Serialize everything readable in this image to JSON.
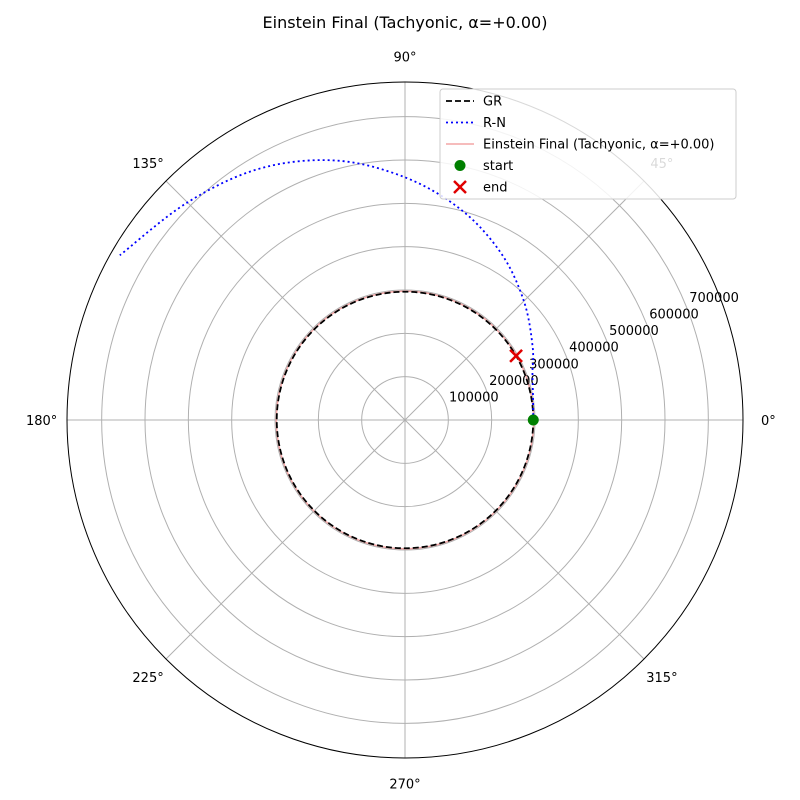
{
  "chart_data": {
    "type": "polar-line",
    "title": "Einstein Final (Tachyonic, α=+0.00)",
    "angle_ticks": [
      "0°",
      "45°",
      "90°",
      "135°",
      "180°",
      "225°",
      "270°",
      "315°"
    ],
    "radial_ticks": [
      "100000",
      "200000",
      "300000",
      "400000",
      "500000",
      "600000",
      "700000"
    ],
    "rlim": [
      0,
      780000
    ],
    "grid": true,
    "legend_position": "top-right",
    "legend": [
      "GR",
      "R-N",
      "Einstein Final (Tachyonic, α=+0.00)",
      "start",
      "end"
    ],
    "series": [
      {
        "name": "GR",
        "style": "dashed",
        "color": "#000000",
        "theta_deg": [
          0,
          30,
          60,
          90,
          120,
          150,
          180,
          210,
          240,
          270,
          300,
          330,
          360
        ],
        "r": [
          296000,
          296000,
          296000,
          296000,
          296000,
          296000,
          296000,
          296000,
          296000,
          296000,
          296000,
          296000,
          296000
        ]
      },
      {
        "name": "R-N",
        "style": "dotted",
        "color": "#0000ff",
        "theta_deg": [
          0,
          10,
          20,
          30,
          45,
          60,
          75,
          90,
          105,
          120,
          135,
          150
        ],
        "r": [
          296000,
          300000,
          313000,
          340000,
          388000,
          444000,
          502000,
          560000,
          620000,
          670000,
          710000,
          760000
        ]
      },
      {
        "name": "Einstein Final (Tachyonic, α=+0.00)",
        "style": "solid",
        "color": "#f4a6a6",
        "theta_deg": [
          0,
          30,
          60,
          90,
          120,
          150,
          180,
          210,
          240,
          270,
          300,
          330,
          360
        ],
        "r": [
          297000,
          297000,
          297000,
          297000,
          297000,
          297000,
          297000,
          297000,
          297000,
          297000,
          297000,
          297000,
          297000
        ]
      }
    ],
    "markers": [
      {
        "name": "start",
        "symbol": "circle",
        "color": "#008000",
        "theta_deg": 0,
        "r": 296000
      },
      {
        "name": "end",
        "symbol": "x",
        "color": "#e00000",
        "theta_deg": 30,
        "r": 296000
      }
    ]
  }
}
